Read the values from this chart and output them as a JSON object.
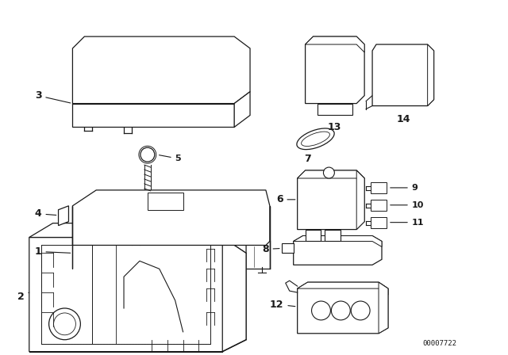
{
  "bg_color": "#ffffff",
  "line_color": "#1a1a1a",
  "diagram_id": "00007722",
  "fig_width": 6.4,
  "fig_height": 4.48,
  "dpi": 100
}
